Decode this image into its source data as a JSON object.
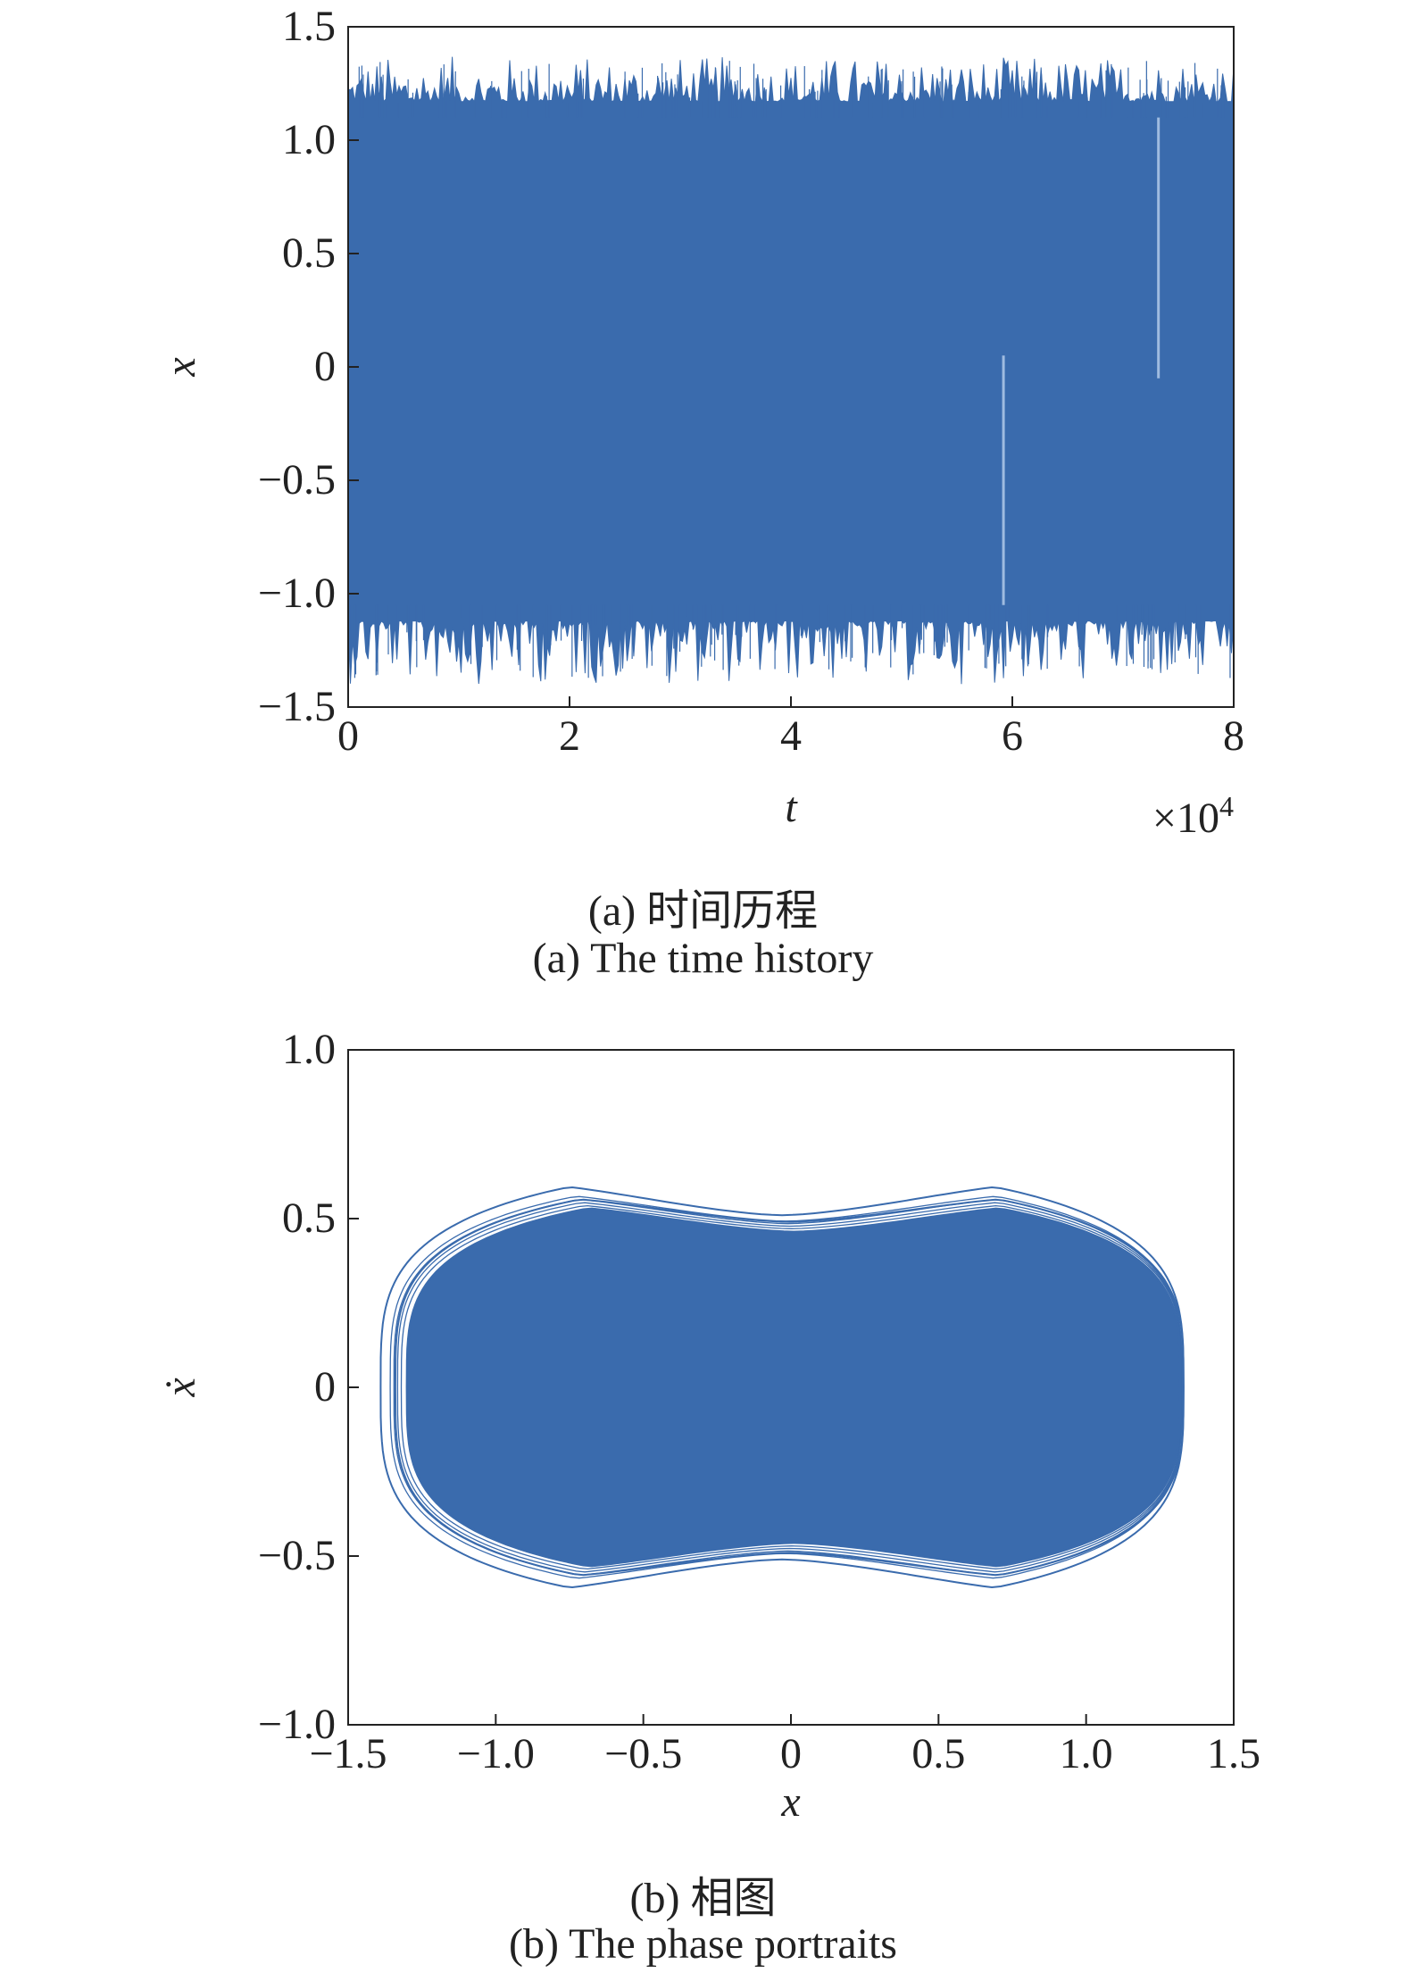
{
  "colors": {
    "series": "#3a6bad",
    "axis": "#222222",
    "background": "#ffffff"
  },
  "chart_data": [
    {
      "type": "line",
      "caption_cn": "(a) 时间历程",
      "caption_en": "(a) The time history",
      "xlabel": "t",
      "ylabel": "x",
      "x_multiplier": "×10",
      "x_multiplier_exp": "4",
      "xlim": [
        0,
        8
      ],
      "ylim": [
        -1.5,
        1.5
      ],
      "xticks": [
        0,
        2,
        4,
        6,
        8
      ],
      "xtick_labels": [
        "0",
        "2",
        "4",
        "6",
        "8"
      ],
      "yticks": [
        1.5,
        1.0,
        0.5,
        0,
        -0.5,
        -1.0,
        -1.5
      ],
      "ytick_labels": [
        "1.5",
        "1.0",
        "0.5",
        "0",
        "−0.5",
        "−1.0",
        "−1.5"
      ],
      "grid": false,
      "series": [
        {
          "band": {
            "x_start": 0,
            "x_end": 8,
            "y_min": -1.1,
            "y_max": 1.15,
            "peak_max": 1.35,
            "peak_min": -1.38
          },
          "spikes": [
            {
              "x": 7.32,
              "y_from": -0.05,
              "y_to": 1.1
            },
            {
              "x": 5.92,
              "y_from": -1.05,
              "y_to": 0.05
            }
          ]
        }
      ]
    },
    {
      "type": "line",
      "caption_cn": "(b) 相图",
      "caption_en": "(b) The phase portraits",
      "xlabel": "x",
      "ylabel": "ẋ",
      "xlim": [
        -1.5,
        1.5
      ],
      "ylim": [
        -1.0,
        1.0
      ],
      "xticks": [
        -1.5,
        -1.0,
        -0.5,
        0,
        0.5,
        1.0,
        1.5
      ],
      "xtick_labels": [
        "−1.5",
        "−1.0",
        "−0.5",
        "0",
        "0.5",
        "1.0",
        "1.5"
      ],
      "yticks": [
        1.0,
        0.5,
        0,
        -0.5,
        -1.0
      ],
      "ytick_labels": [
        "1.0",
        "0.5",
        "0",
        "−0.5",
        "−1.0"
      ],
      "grid": false,
      "series": [
        {
          "filled_region": {
            "x_extent": [
              -1.3,
              1.32
            ],
            "y_lobe_max": 0.58,
            "y_waist": 0.46
          },
          "outer_orbits": [
            {
              "x_extent": [
                -1.39,
                1.33
              ],
              "y_lobe_max": 0.65,
              "y_waist": 0.51
            },
            {
              "x_extent": [
                -1.34,
                1.33
              ],
              "y_lobe_max": 0.61,
              "y_waist": 0.49
            }
          ]
        }
      ]
    }
  ]
}
